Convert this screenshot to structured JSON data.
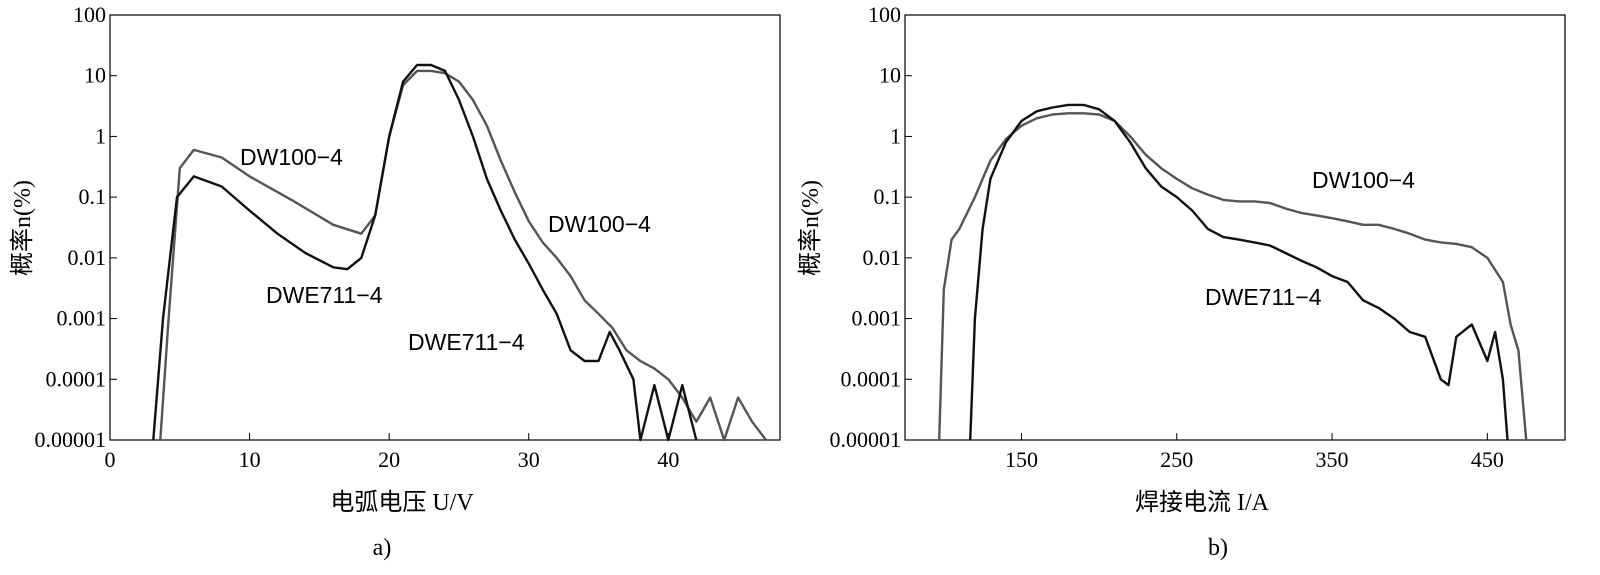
{
  "chart_data": [
    {
      "type": "line",
      "panel_label": "a)",
      "xlabel": "电弧电压 U/V",
      "ylabel": "概率n(%)",
      "xlim": [
        0,
        48
      ],
      "ylim": [
        1e-05,
        100
      ],
      "y_scale": "log",
      "x_ticks": [
        0,
        10,
        20,
        30,
        40
      ],
      "x_tick_labels": [
        "0",
        "10",
        "20",
        "30",
        "40"
      ],
      "y_ticks": [
        1e-05,
        0.0001,
        0.001,
        0.01,
        0.1,
        1,
        10,
        100
      ],
      "y_tick_labels": [
        "0.00001",
        "0.0001",
        "0.001",
        "0.01",
        "0.1",
        "1",
        "10",
        "100"
      ],
      "grid": false,
      "series": [
        {
          "name": "DW100−4",
          "color": "#555555",
          "points": [
            [
              3.6,
              1e-05
            ],
            [
              4.2,
              0.001
            ],
            [
              5,
              0.3
            ],
            [
              6,
              0.6
            ],
            [
              8,
              0.45
            ],
            [
              10,
              0.22
            ],
            [
              13,
              0.09
            ],
            [
              16,
              0.035
            ],
            [
              18,
              0.025
            ],
            [
              19,
              0.05
            ],
            [
              20,
              1
            ],
            [
              21,
              7
            ],
            [
              22,
              12
            ],
            [
              23,
              12
            ],
            [
              24,
              11
            ],
            [
              25,
              8
            ],
            [
              26,
              4
            ],
            [
              27,
              1.5
            ],
            [
              28,
              0.4
            ],
            [
              29,
              0.12
            ],
            [
              30,
              0.04
            ],
            [
              31,
              0.018
            ],
            [
              32,
              0.01
            ],
            [
              33,
              0.005
            ],
            [
              34,
              0.002
            ],
            [
              35,
              0.0012
            ],
            [
              36,
              0.0007
            ],
            [
              37,
              0.0003
            ],
            [
              38,
              0.0002
            ],
            [
              39,
              0.00015
            ],
            [
              40,
              0.0001
            ],
            [
              41,
              5e-05
            ],
            [
              42,
              2e-05
            ],
            [
              43,
              5e-05
            ],
            [
              44,
              1e-05
            ],
            [
              45,
              5e-05
            ],
            [
              46,
              2e-05
            ],
            [
              47,
              1e-05
            ]
          ],
          "label_text": "DW100−4",
          "label2_text": "DW100−4"
        },
        {
          "name": "DWE711−4",
          "color": "#111111",
          "points": [
            [
              3.1,
              1e-05
            ],
            [
              3.8,
              0.001
            ],
            [
              4.8,
              0.1
            ],
            [
              6,
              0.22
            ],
            [
              8,
              0.15
            ],
            [
              10,
              0.06
            ],
            [
              12,
              0.025
            ],
            [
              14,
              0.012
            ],
            [
              16,
              0.007
            ],
            [
              17,
              0.0065
            ],
            [
              18,
              0.01
            ],
            [
              19,
              0.05
            ],
            [
              20,
              1
            ],
            [
              21,
              8
            ],
            [
              22,
              15
            ],
            [
              23,
              15
            ],
            [
              24,
              12
            ],
            [
              25,
              4
            ],
            [
              26,
              1
            ],
            [
              27,
              0.2
            ],
            [
              28,
              0.06
            ],
            [
              29,
              0.02
            ],
            [
              30,
              0.008
            ],
            [
              31,
              0.003
            ],
            [
              32,
              0.0012
            ],
            [
              33,
              0.0003
            ],
            [
              34,
              0.0002
            ],
            [
              35,
              0.0002
            ],
            [
              35.8,
              0.0006
            ],
            [
              36.5,
              0.0003
            ],
            [
              37.5,
              0.0001
            ],
            [
              38,
              1e-05
            ],
            [
              39,
              8e-05
            ],
            [
              40,
              1e-05
            ],
            [
              41,
              8e-05
            ],
            [
              42,
              1e-05
            ]
          ],
          "label_text": "DWE711−4",
          "label2_text": "DWE711−4"
        }
      ]
    },
    {
      "type": "line",
      "panel_label": "b)",
      "xlabel": "焊接电流 I/A",
      "ylabel": "概率n(%)",
      "xlim": [
        75,
        500
      ],
      "ylim": [
        1e-05,
        100
      ],
      "y_scale": "log",
      "x_ticks": [
        150,
        250,
        350,
        450
      ],
      "x_tick_labels": [
        "150",
        "250",
        "350",
        "450"
      ],
      "y_ticks": [
        1e-05,
        0.0001,
        0.001,
        0.01,
        0.1,
        1,
        10,
        100
      ],
      "y_tick_labels": [
        "0.00001",
        "0.0001",
        "0.001",
        "0.01",
        "0.1",
        "1",
        "10",
        "100"
      ],
      "grid": false,
      "series": [
        {
          "name": "DW100−4",
          "color": "#555555",
          "points": [
            [
              97,
              1e-05
            ],
            [
              100,
              0.003
            ],
            [
              105,
              0.02
            ],
            [
              110,
              0.03
            ],
            [
              120,
              0.1
            ],
            [
              130,
              0.4
            ],
            [
              140,
              0.9
            ],
            [
              150,
              1.5
            ],
            [
              160,
              2
            ],
            [
              170,
              2.3
            ],
            [
              180,
              2.4
            ],
            [
              190,
              2.4
            ],
            [
              200,
              2.3
            ],
            [
              210,
              1.8
            ],
            [
              220,
              1
            ],
            [
              230,
              0.5
            ],
            [
              240,
              0.3
            ],
            [
              250,
              0.2
            ],
            [
              260,
              0.14
            ],
            [
              270,
              0.11
            ],
            [
              280,
              0.09
            ],
            [
              290,
              0.085
            ],
            [
              300,
              0.085
            ],
            [
              310,
              0.08
            ],
            [
              320,
              0.065
            ],
            [
              330,
              0.055
            ],
            [
              340,
              0.05
            ],
            [
              350,
              0.045
            ],
            [
              360,
              0.04
            ],
            [
              370,
              0.035
            ],
            [
              380,
              0.035
            ],
            [
              390,
              0.03
            ],
            [
              400,
              0.025
            ],
            [
              410,
              0.02
            ],
            [
              420,
              0.018
            ],
            [
              430,
              0.017
            ],
            [
              440,
              0.015
            ],
            [
              450,
              0.01
            ],
            [
              460,
              0.004
            ],
            [
              465,
              0.0008
            ],
            [
              470,
              0.0003
            ],
            [
              475,
              1e-05
            ]
          ],
          "label_text": "DW100−4"
        },
        {
          "name": "DWE711−4",
          "color": "#111111",
          "points": [
            [
              117,
              1e-05
            ],
            [
              120,
              0.001
            ],
            [
              125,
              0.03
            ],
            [
              130,
              0.2
            ],
            [
              140,
              0.8
            ],
            [
              150,
              1.8
            ],
            [
              160,
              2.6
            ],
            [
              170,
              3
            ],
            [
              180,
              3.3
            ],
            [
              190,
              3.3
            ],
            [
              200,
              2.8
            ],
            [
              210,
              1.8
            ],
            [
              220,
              0.8
            ],
            [
              230,
              0.3
            ],
            [
              240,
              0.15
            ],
            [
              250,
              0.1
            ],
            [
              260,
              0.06
            ],
            [
              270,
              0.03
            ],
            [
              280,
              0.022
            ],
            [
              290,
              0.02
            ],
            [
              300,
              0.018
            ],
            [
              310,
              0.016
            ],
            [
              320,
              0.012
            ],
            [
              330,
              0.009
            ],
            [
              340,
              0.007
            ],
            [
              350,
              0.005
            ],
            [
              360,
              0.004
            ],
            [
              370,
              0.002
            ],
            [
              380,
              0.0015
            ],
            [
              390,
              0.001
            ],
            [
              400,
              0.0006
            ],
            [
              410,
              0.0005
            ],
            [
              420,
              0.0001
            ],
            [
              425,
              8e-05
            ],
            [
              430,
              0.0005
            ],
            [
              440,
              0.0008
            ],
            [
              450,
              0.0002
            ],
            [
              455,
              0.0006
            ],
            [
              460,
              0.0001
            ],
            [
              463,
              1e-05
            ]
          ],
          "label_text": "DWE711−4"
        }
      ]
    }
  ]
}
